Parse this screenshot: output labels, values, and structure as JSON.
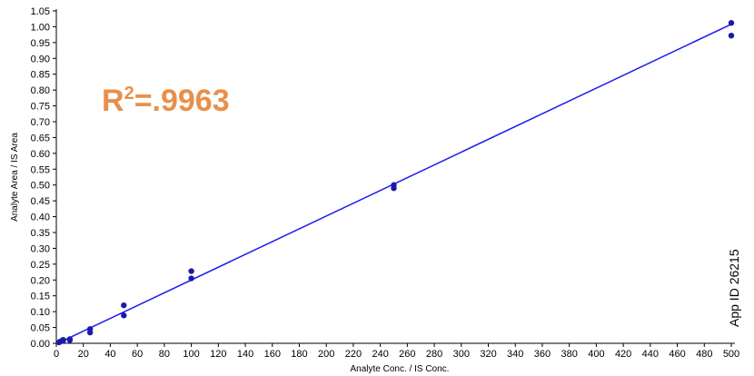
{
  "chart_data": {
    "type": "scatter",
    "xlabel": "Analyte Conc. / IS Conc.",
    "ylabel": "Analyte Area / IS Area",
    "xlim": [
      0,
      500
    ],
    "ylim": [
      0,
      1.05
    ],
    "x_ticks": [
      0,
      20,
      40,
      60,
      80,
      100,
      120,
      140,
      160,
      180,
      200,
      220,
      240,
      260,
      280,
      300,
      320,
      340,
      360,
      380,
      400,
      420,
      440,
      460,
      480,
      500
    ],
    "y_ticks": [
      "0.00",
      "0.05",
      "0.10",
      "0.15",
      "0.20",
      "0.25",
      "0.30",
      "0.35",
      "0.40",
      "0.45",
      "0.50",
      "0.55",
      "0.60",
      "0.65",
      "0.70",
      "0.75",
      "0.80",
      "0.85",
      "0.90",
      "0.95",
      "1.00",
      "1.05"
    ],
    "series": [
      {
        "color": "#1a1aa8",
        "points": [
          {
            "x": 2,
            "y": 0.003
          },
          {
            "x": 3,
            "y": 0.006
          },
          {
            "x": 5,
            "y": 0.008
          },
          {
            "x": 5,
            "y": 0.011
          },
          {
            "x": 10,
            "y": 0.01
          },
          {
            "x": 10,
            "y": 0.013
          },
          {
            "x": 25,
            "y": 0.034
          },
          {
            "x": 25,
            "y": 0.045
          },
          {
            "x": 50,
            "y": 0.088
          },
          {
            "x": 50,
            "y": 0.12
          },
          {
            "x": 100,
            "y": 0.205
          },
          {
            "x": 100,
            "y": 0.228
          },
          {
            "x": 250,
            "y": 0.49
          },
          {
            "x": 250,
            "y": 0.5
          },
          {
            "x": 500,
            "y": 0.972
          },
          {
            "x": 500,
            "y": 1.012
          }
        ]
      }
    ],
    "fit_line": {
      "color": "#1a1aee",
      "x": [
        0,
        500
      ],
      "y": [
        -0.002,
        1.008
      ]
    },
    "annotations": {
      "r2_base": "R",
      "r2_exp": "2",
      "r2_value": "=.9963",
      "r2_color": "#e8904a",
      "app_id": "App ID 26215"
    },
    "grid": false
  }
}
